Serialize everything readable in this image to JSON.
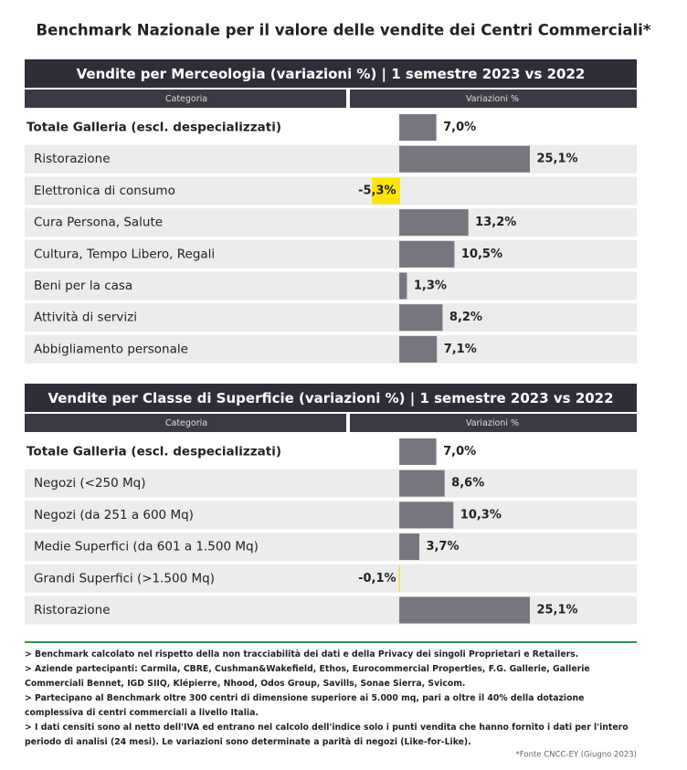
{
  "title": "Benchmark Nazionale per il valore delle vendite dei Centri Commerciali*",
  "chart_data": [
    {
      "type": "bar",
      "title": "Vendite per Merceologia (variazioni %) | 1 semestre 2023 vs 2022",
      "headers": [
        "Categoria",
        "Variazioni %"
      ],
      "categories": [
        "Totale Galleria (escl. despecializzati)",
        "Ristorazione",
        "Elettronica di consumo",
        "Cura Persona, Salute",
        "Cultura, Tempo Libero, Regali",
        "Beni per la casa",
        "Attività di servizi",
        "Abbigliamento personale"
      ],
      "values": [
        7.0,
        25.1,
        -5.3,
        13.2,
        10.5,
        1.3,
        8.2,
        7.1
      ],
      "value_labels": [
        "7,0%",
        "25,1%",
        "-5,3%",
        "13,2%",
        "10,5%",
        "1,3%",
        "8,2%",
        "7,1%"
      ],
      "color": "#76767e",
      "negative_color": "#ffe600",
      "xlim": [
        -10,
        45
      ]
    },
    {
      "type": "bar",
      "title": "Vendite per Classe di Superficie (variazioni %) | 1 semestre 2023 vs 2022",
      "headers": [
        "Categoria",
        "Variazioni %"
      ],
      "categories": [
        "Totale Galleria (escl. despecializzati)",
        "Negozi (<250 Mq)",
        "Negozi (da 251 a 600 Mq)",
        "Medie Superfici (da 601 a 1.500 Mq)",
        "Grandi Superfici (>1.500 Mq)",
        "Ristorazione"
      ],
      "values": [
        7.0,
        8.6,
        10.3,
        3.7,
        -0.1,
        25.1
      ],
      "value_labels": [
        "7,0%",
        "8,6%",
        "10,3%",
        "3,7%",
        "-0,1%",
        "25,1%"
      ],
      "color": "#76767e",
      "negative_color": "#ffe600",
      "xlim": [
        -10,
        45
      ]
    }
  ],
  "notes": [
    "> Benchmark calcolato nel rispetto della non tracciabilità dei dati e della Privacy dei singoli Proprietari e Retailers.",
    "> Aziende partecipanti: Carmila, CBRE, Cushman&Wakefield, Ethos, Eurocommercial Properties, F.G. Gallerie, Gallerie Commerciali Bennet, IGD SIIQ, Klépierre, Nhood, Odos Group, Savills, Sonae Sierra, Svicom.",
    "> Partecipano al Benchmark oltre 300 centri di dimensione superiore ai 5.000 mq, pari a oltre il 40% della dotazione complessiva di centri commerciali a livello Italia.",
    "> I dati censiti sono al netto dell'IVA ed entrano nel calcolo dell'indice solo i punti vendita che hanno fornito i dati per l'intero periodo di analisi (24 mesi). Le variazioni sono determinate a parità di negozi (Like-for-Like)."
  ],
  "source": "*Fonte CNCC-EY (Giugno 2023)"
}
